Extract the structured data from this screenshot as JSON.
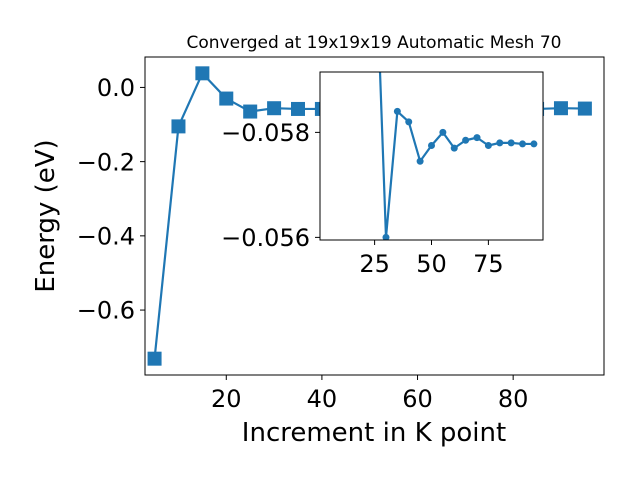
{
  "chart_data": [
    {
      "type": "line",
      "title": "Converged at 19x19x19 Automatic Mesh 70",
      "xlabel": "Increment in K point",
      "ylabel": "Energy (eV)",
      "xlim": [
        3,
        99
      ],
      "ylim": [
        -0.775,
        0.082
      ],
      "xticks": [
        20,
        40,
        60,
        80
      ],
      "xtick_labels": [
        "20",
        "40",
        "60",
        "80"
      ],
      "yticks": [
        0.0,
        -0.2,
        -0.4,
        -0.6
      ],
      "ytick_labels": [
        "0.0",
        "−0.2",
        "−0.4",
        "−0.6"
      ],
      "marker": "square",
      "color": "#1f77b4",
      "grid": false,
      "series": [
        {
          "x": [
            5,
            10,
            15,
            20,
            25,
            30,
            35,
            40,
            45,
            50,
            55,
            60,
            65,
            70,
            75,
            80,
            85,
            90,
            95
          ],
          "y": [
            -0.731,
            -0.105,
            0.038,
            -0.03,
            -0.065,
            -0.056,
            -0.058,
            -0.058,
            -0.058,
            -0.058,
            -0.058,
            -0.058,
            -0.058,
            -0.058,
            -0.058,
            -0.058,
            -0.058,
            -0.056,
            -0.057
          ]
        }
      ]
    },
    {
      "type": "line",
      "title": "",
      "xlabel": "",
      "ylabel": "",
      "xlim": [
        1,
        99
      ],
      "ylim": [
        -0.05595,
        -0.05915
      ],
      "xticks": [
        25,
        50,
        75
      ],
      "xtick_labels": [
        "25",
        "50",
        "75"
      ],
      "yticks": [
        -0.058,
        -0.056
      ],
      "ytick_labels": [
        "−0.058",
        "−0.056"
      ],
      "marker": "circle",
      "color": "#1f77b4",
      "grid": false,
      "series": [
        {
          "x": [
            25,
            30,
            35,
            40,
            45,
            50,
            55,
            60,
            65,
            70,
            75,
            80,
            85,
            90,
            95
          ],
          "y": [
            -0.062,
            -0.056,
            -0.0584,
            -0.0582,
            -0.05745,
            -0.05775,
            -0.058,
            -0.0577,
            -0.05785,
            -0.0579,
            -0.05775,
            -0.0578,
            -0.0578,
            -0.05778,
            -0.05778
          ]
        }
      ]
    }
  ]
}
